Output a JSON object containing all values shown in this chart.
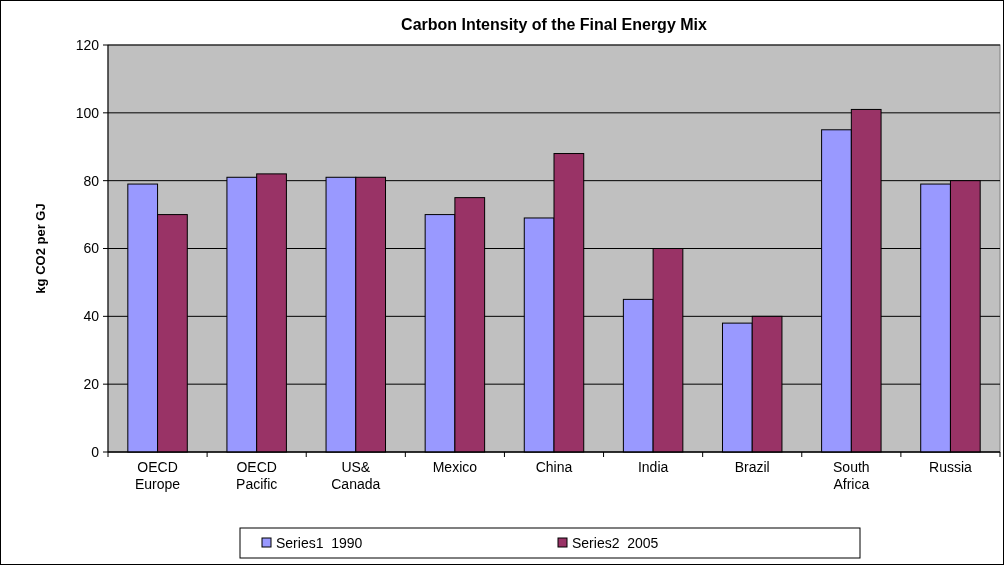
{
  "chart_data": {
    "type": "bar",
    "title": "Carbon Intensity of the Final Energy Mix",
    "ylabel": "kg CO2 per GJ",
    "categories": [
      "OECD Europe",
      "OECD Pacific",
      "US& Canada",
      "Mexico",
      "China",
      "India",
      "Brazil",
      "South Africa",
      "Russia"
    ],
    "series": [
      {
        "name": "Series1  1990",
        "color": "#9999ff",
        "values": [
          79,
          81,
          81,
          70,
          69,
          45,
          38,
          95,
          79
        ]
      },
      {
        "name": "Series2  2005",
        "color": "#993366",
        "values": [
          70,
          82,
          81,
          75,
          88,
          60,
          40,
          101,
          80
        ]
      }
    ],
    "ylim": [
      0,
      120
    ],
    "yticks": [
      0,
      20,
      40,
      60,
      80,
      100,
      120
    ],
    "grid": "y",
    "legend": "bottom"
  }
}
